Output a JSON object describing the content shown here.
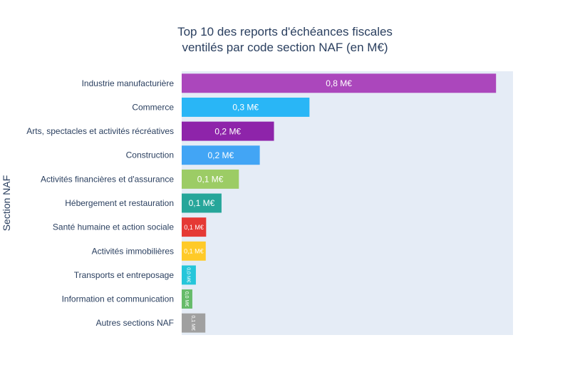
{
  "chart_data": {
    "type": "bar",
    "orientation": "horizontal",
    "title": [
      "Top 10 des reports d'échéances fiscales",
      "ventilés par code section NAF (en M€)"
    ],
    "ylabel": "Section NAF",
    "xlabel": "",
    "xlim": [
      0,
      0.84
    ],
    "grid": false,
    "legend": "none",
    "categories": [
      "Industrie manufacturière",
      "Commerce",
      "Arts, spectacles et activités récréatives",
      "Construction",
      "Activités financières et d'assurance",
      "Hébergement et restauration",
      "Santé humaine et action sociale",
      "Activités immobilières",
      "Transports et entreposage",
      "Information et communication",
      "Autres sections NAF"
    ],
    "values": [
      0.797,
      0.324,
      0.234,
      0.198,
      0.145,
      0.101,
      0.062,
      0.061,
      0.036,
      0.027,
      0.06
    ],
    "labels": [
      "0,8 M€",
      "0,3 M€",
      "0,2 M€",
      "0,2 M€",
      "0,1 M€",
      "0,1 M€",
      "0,1 M€",
      "0,1 M€",
      "0,0 M€",
      "0,0 M€",
      "0,1 M€"
    ],
    "colors": [
      "#ab47bc",
      "#29b6f6",
      "#8e24aa",
      "#42a5f5",
      "#9ccc65",
      "#26a69a",
      "#e53935",
      "#ffca28",
      "#26c6da",
      "#66bb6a",
      "#a0a0a0"
    ],
    "plot_background": "#e5ecf6"
  }
}
